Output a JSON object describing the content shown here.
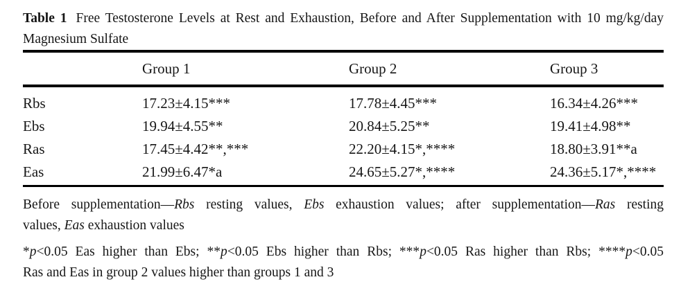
{
  "caption": {
    "label": "Table 1",
    "line1": "Free Testosterone Levels at Rest and Exhaustion, Before and After Supplementation with 10 mg/kg/day",
    "line2": "Magnesium Sulfate",
    "full_text": "Table 1 Free Testosterone Levels at Rest and Exhaustion, Before and After Supplementation with 10 mg/kg/day Magnesium Sulfate"
  },
  "table": {
    "columns": [
      "",
      "Group 1",
      "Group 2",
      "Group 3"
    ],
    "rows": [
      {
        "label": "Rbs",
        "group1": "17.23±4.15***",
        "group2": "17.78±4.45***",
        "group3": "16.34±4.26***"
      },
      {
        "label": "Ebs",
        "group1": "19.94±4.55**",
        "group2": "20.84±5.25**",
        "group3": "19.41±4.98**"
      },
      {
        "label": "Ras",
        "group1": "17.45±4.42**,***",
        "group2": "22.20±4.15*,****",
        "group3": "18.80±3.91**a"
      },
      {
        "label": "Eas",
        "group1": "21.99±6.47*a",
        "group2": "24.65±5.27*,****",
        "group3": "24.36±5.17*,****"
      }
    ]
  },
  "chart_data": {
    "type": "table",
    "title": "Free Testosterone Levels at Rest and Exhaustion, Before and After Supplementation with 10 mg/kg/day Magnesium Sulfate",
    "categories": [
      "Rbs",
      "Ebs",
      "Ras",
      "Eas"
    ],
    "series": [
      {
        "name": "Group 1",
        "values": [
          17.23,
          19.94,
          17.45,
          21.99
        ],
        "sd": [
          4.15,
          4.55,
          4.42,
          6.47
        ],
        "significance": [
          "***",
          "**",
          "**,***",
          "*a"
        ]
      },
      {
        "name": "Group 2",
        "values": [
          17.78,
          20.84,
          22.2,
          24.65
        ],
        "sd": [
          4.45,
          5.25,
          4.15,
          5.27
        ],
        "significance": [
          "***",
          "**",
          "*,****",
          "*,****"
        ]
      },
      {
        "name": "Group 3",
        "values": [
          16.34,
          19.41,
          18.8,
          24.36
        ],
        "sd": [
          4.26,
          4.98,
          3.91,
          5.17
        ],
        "significance": [
          "***",
          "**",
          "**a",
          "*,****"
        ]
      }
    ]
  },
  "footnotes": {
    "definitions": {
      "full_text": "Before supplementation—Rbs resting values, Ebs exhaustion values; after supplementation—Ras resting values, Eas exhaustion values",
      "line1": {
        "segments": [
          {
            "text": "Before supplementation—",
            "italic": false
          },
          {
            "text": "Rbs",
            "italic": true
          },
          {
            "text": " resting values, ",
            "italic": false
          },
          {
            "text": "Ebs",
            "italic": true
          },
          {
            "text": " exhaustion values; after supplementation—",
            "italic": false
          },
          {
            "text": "Ras",
            "italic": true
          },
          {
            "text": " resting",
            "italic": false
          }
        ]
      },
      "line2": {
        "segments": [
          {
            "text": "values, ",
            "italic": false
          },
          {
            "text": "Eas",
            "italic": true
          },
          {
            "text": " exhaustion values",
            "italic": false
          }
        ]
      }
    },
    "significance": {
      "full_text": "*p<0.05 Eas higher than Ebs; **p<0.05 Ebs higher than Rbs; ***p<0.05 Ras higher than Rbs; ****p<0.05 Ras and Eas in group 2 values higher than groups 1 and 3",
      "line1": {
        "segments": [
          {
            "text": "*",
            "italic": false
          },
          {
            "text": "p",
            "italic": true
          },
          {
            "text": "<0.05 Eas higher than Ebs; **",
            "italic": false
          },
          {
            "text": "p",
            "italic": true
          },
          {
            "text": "<0.05 Ebs higher than Rbs; ***",
            "italic": false
          },
          {
            "text": "p",
            "italic": true
          },
          {
            "text": "<0.05 Ras higher than Rbs; ****",
            "italic": false
          },
          {
            "text": "p",
            "italic": true
          },
          {
            "text": "<0.05",
            "italic": false
          }
        ]
      },
      "line2": {
        "segments": [
          {
            "text": "Ras and Eas in group 2 values higher than groups 1 and 3",
            "italic": false
          }
        ]
      }
    }
  },
  "colors": {
    "background": "#ffffff",
    "text": "#161616",
    "rule": "#000000"
  }
}
